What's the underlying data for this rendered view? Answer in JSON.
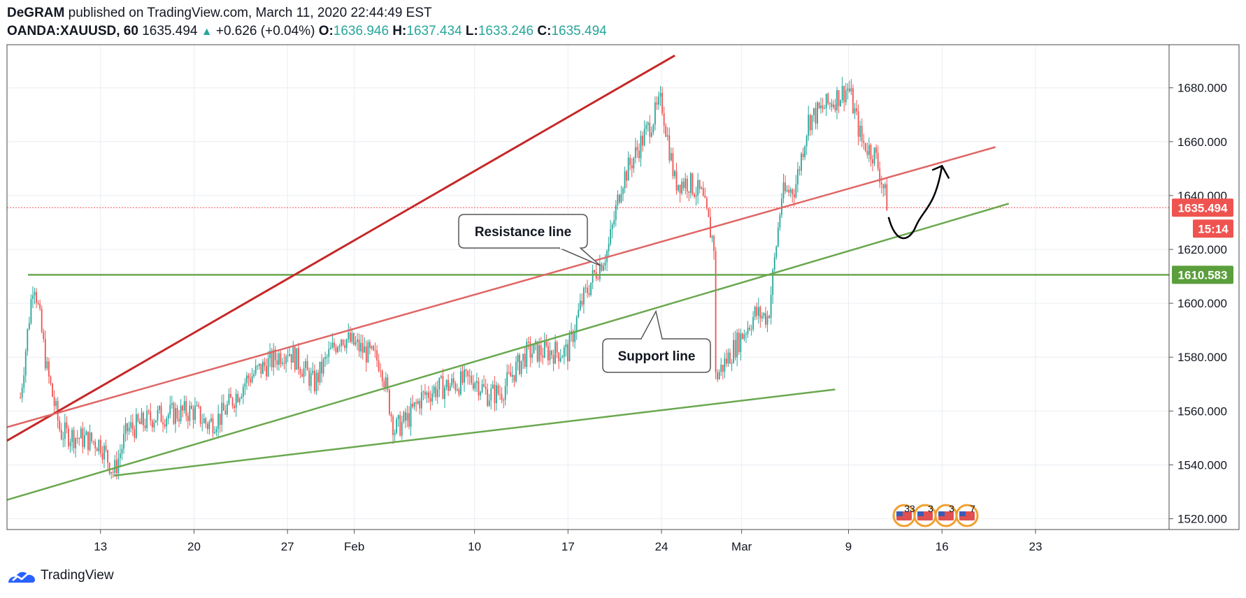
{
  "header": {
    "author": "DeGRAM",
    "published_text": "published on TradingView.com, March 11, 2020 22:44:49 EST",
    "symbol": "OANDA:XAUUSD, 60",
    "last": "1635.494",
    "change_arrow": "▲",
    "change": "+0.626 (+0.04%)",
    "o_label": "O:",
    "o_value": "1636.946",
    "h_label": "H:",
    "h_value": "1637.434",
    "l_label": "L:",
    "l_value": "1633.246",
    "c_label": "C:",
    "c_value": "1635.494"
  },
  "footer": {
    "brand": "TradingView"
  },
  "colors": {
    "up": "#26a69a",
    "down": "#ef5350",
    "resistance_red": "#c62828",
    "channel_red": "#e06666",
    "support_green": "#6aa84f",
    "level_green": "#6aa84f",
    "price_tag_red": "#ef5350",
    "level_tag_green": "#5b9e3c",
    "grid": "#e9edf2",
    "axis_text": "#131722"
  },
  "chart_data": {
    "type": "candlestick",
    "symbol": "OANDA:XAUUSD",
    "interval": "60",
    "x_tick_labels": [
      "13",
      "20",
      "27",
      "Feb",
      "10",
      "17",
      "24",
      "Mar",
      "9",
      "16",
      "23"
    ],
    "y_tick_labels": [
      "1520.000",
      "1540.000",
      "1560.000",
      "1580.000",
      "1600.000",
      "1620.000",
      "1640.000",
      "1660.000",
      "1680.000"
    ],
    "ylim": [
      1516,
      1696
    ],
    "grid": true,
    "price_series": [
      [
        "Jan 7",
        1565
      ],
      [
        "Jan 8",
        1610
      ],
      [
        "Jan 9",
        1575
      ],
      [
        "Jan 10",
        1552
      ],
      [
        "Jan 13",
        1548
      ],
      [
        "Jan 14",
        1537
      ],
      [
        "Jan 15",
        1553
      ],
      [
        "Jan 16",
        1555
      ],
      [
        "Jan 17",
        1558
      ],
      [
        "Jan 20",
        1560
      ],
      [
        "Jan 21",
        1555
      ],
      [
        "Jan 22",
        1558
      ],
      [
        "Jan 23",
        1565
      ],
      [
        "Jan 24",
        1572
      ],
      [
        "Jan 27",
        1583
      ],
      [
        "Jan 28",
        1577
      ],
      [
        "Jan 29",
        1570
      ],
      [
        "Jan 30",
        1580
      ],
      [
        "Jan 31",
        1588
      ],
      [
        "Feb 3",
        1578
      ],
      [
        "Feb 4",
        1553
      ],
      [
        "Feb 5",
        1557
      ],
      [
        "Feb 6",
        1565
      ],
      [
        "Feb 7",
        1568
      ],
      [
        "Feb 10",
        1572
      ],
      [
        "Feb 11",
        1566
      ],
      [
        "Feb 12",
        1567
      ],
      [
        "Feb 13",
        1575
      ],
      [
        "Feb 14",
        1582
      ],
      [
        "Feb 17",
        1582
      ],
      [
        "Feb 18",
        1600
      ],
      [
        "Feb 19",
        1611
      ],
      [
        "Feb 20",
        1620
      ],
      [
        "Feb 21",
        1645
      ],
      [
        "Feb 24",
        1675
      ],
      [
        "Feb 25",
        1645
      ],
      [
        "Feb 26",
        1645
      ],
      [
        "Feb 27",
        1640
      ],
      [
        "Feb 28",
        1620
      ],
      [
        "Feb 28",
        1572
      ],
      [
        "Mar 2",
        1596
      ],
      [
        "Mar 3",
        1595
      ],
      [
        "Mar 4",
        1640
      ],
      [
        "Mar 5",
        1643
      ],
      [
        "Mar 6",
        1668
      ],
      [
        "Mar 9",
        1680
      ],
      [
        "Mar 10",
        1660
      ],
      [
        "Mar 11",
        1655
      ],
      [
        "Mar 12",
        1635
      ]
    ],
    "last_price": "1635.494",
    "countdown": "15:14",
    "horizontal_level": "1610.583",
    "trend_lines": [
      {
        "name": "upper-resistance",
        "color": "red",
        "from": [
          "Jan 6",
          1549
        ],
        "to": [
          "Feb 25",
          1692
        ]
      },
      {
        "name": "channel-resistance",
        "color": "red",
        "from": [
          "Jan 6",
          1554
        ],
        "to": [
          "Mar 20",
          1658
        ]
      },
      {
        "name": "channel-support",
        "color": "green",
        "from": [
          "Jan 6",
          1527
        ],
        "to": [
          "Mar 21",
          1637
        ]
      },
      {
        "name": "lower-support",
        "color": "green",
        "from": [
          "Jan 14",
          1536
        ],
        "to": [
          "Mar 8",
          1568
        ]
      }
    ],
    "projection": {
      "from": [
        "Mar 12",
        1632
      ],
      "low": [
        "Mar 13",
        1625
      ],
      "to": [
        "Mar 16",
        1651
      ]
    },
    "annotations": [
      {
        "text": "Resistance line",
        "anchor": [
          "Feb 19",
          1614
        ]
      },
      {
        "text": "Support line",
        "anchor": [
          "Feb 24",
          1597
        ]
      }
    ],
    "event_markers": [
      "33",
      "3",
      "3",
      "7"
    ]
  }
}
